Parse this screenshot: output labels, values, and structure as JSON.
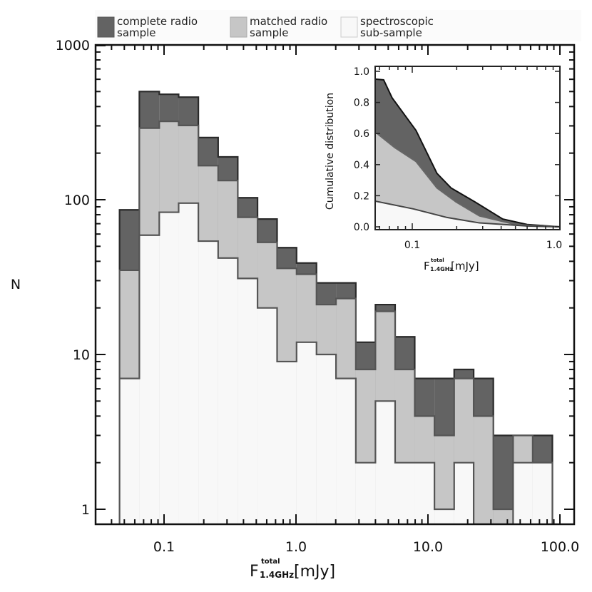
{
  "chart_data": [
    {
      "type": "bar",
      "subtype": "stacked-overlaid histogram (log-log)",
      "xlabel": {
        "main": "F",
        "sup": "total",
        "sub": "1.4GHz",
        "unit": "[mJy]"
      },
      "ylabel": "N",
      "xscale": "log",
      "yscale": "log",
      "xlim": [
        0.03,
        128
      ],
      "ylim": [
        0.8,
        1000
      ],
      "xticks": [
        0.1,
        1.0,
        10.0,
        100.0
      ],
      "xtick_labels": [
        "0.1",
        "1.0",
        "10.0",
        "100.0"
      ],
      "yticks": [
        1,
        10,
        100,
        1000
      ],
      "ytick_labels": [
        "1",
        "10",
        "100",
        "1000"
      ],
      "bin_edges": [
        0.046,
        0.065,
        0.092,
        0.129,
        0.182,
        0.257,
        0.362,
        0.511,
        0.719,
        1.01,
        1.43,
        2.01,
        2.84,
        4.0,
        5.64,
        7.94,
        11.2,
        15.8,
        22.2,
        31.3,
        44.2,
        62.2,
        87.7
      ],
      "series": [
        {
          "name": "complete radio sample",
          "color": "#636363",
          "values": [
            86,
            500,
            480,
            460,
            252,
            189,
            103,
            75,
            49,
            39,
            29,
            29,
            12,
            21,
            13,
            7,
            7,
            8,
            7,
            3,
            3,
            3
          ]
        },
        {
          "name": "matched radio sample",
          "color": "#c6c6c6",
          "values": [
            35,
            290,
            321,
            302,
            166,
            133,
            77,
            53,
            36,
            33,
            21,
            23,
            8,
            19,
            8,
            4,
            3,
            7,
            4,
            1,
            3,
            2
          ]
        },
        {
          "name": "spectroscopic sub-sample",
          "color": "#f8f8f8",
          "values": [
            7,
            59,
            83,
            95,
            54,
            42,
            31,
            20,
            9,
            12,
            10,
            7,
            2,
            5,
            2,
            2,
            1,
            2,
            0,
            0,
            2,
            2
          ]
        }
      ],
      "legend": {
        "placement": "top",
        "entries": [
          {
            "line1": "complete radio",
            "line2": "sample",
            "color": "#636363"
          },
          {
            "line1": "matched radio",
            "line2": "sample",
            "color": "#c6c6c6"
          },
          {
            "line1": "spectroscopic",
            "line2": "sub-sample",
            "color": "#f8f8f8"
          }
        ]
      }
    },
    {
      "type": "area",
      "placement": "inset top-right",
      "ylabel": "Cumulative distribution",
      "xlabel": {
        "main": "F",
        "sup": "total",
        "sub": "1.4GHz",
        "unit": "[mJy]"
      },
      "xscale": "log",
      "xlim": [
        0.056,
        1.0
      ],
      "ylim": [
        -0.02,
        1.03
      ],
      "xticks": [
        0.1,
        1.0
      ],
      "xtick_labels": [
        "0.1",
        "1.0"
      ],
      "yticks": [
        0.0,
        0.2,
        0.4,
        0.6,
        0.8,
        1.0
      ],
      "ytick_labels": [
        "0.0",
        "0.2",
        "0.4",
        "0.6",
        "0.8",
        "1.0"
      ],
      "series": [
        {
          "name": "complete radio sample",
          "color": "#636363",
          "x": [
            0.056,
            0.064,
            0.073,
            0.106,
            0.147,
            0.183,
            0.266,
            0.41,
            0.6,
            1.0
          ],
          "y": [
            0.95,
            0.945,
            0.83,
            0.62,
            0.344,
            0.25,
            0.16,
            0.05,
            0.015,
            0.0
          ]
        },
        {
          "name": "matched radio sample",
          "color": "#c6c6c6",
          "x": [
            0.056,
            0.076,
            0.106,
            0.147,
            0.198,
            0.285,
            0.5,
            0.75,
            1.0
          ],
          "y": [
            0.61,
            0.51,
            0.42,
            0.25,
            0.16,
            0.07,
            0.015,
            0.005,
            0.0
          ]
        },
        {
          "name": "spectroscopic sub-sample",
          "color": "#f8f8f8",
          "x": [
            0.056,
            0.102,
            0.172,
            0.285,
            0.6,
            1.0
          ],
          "y": [
            0.165,
            0.115,
            0.06,
            0.025,
            0.005,
            0.0
          ]
        }
      ]
    }
  ]
}
